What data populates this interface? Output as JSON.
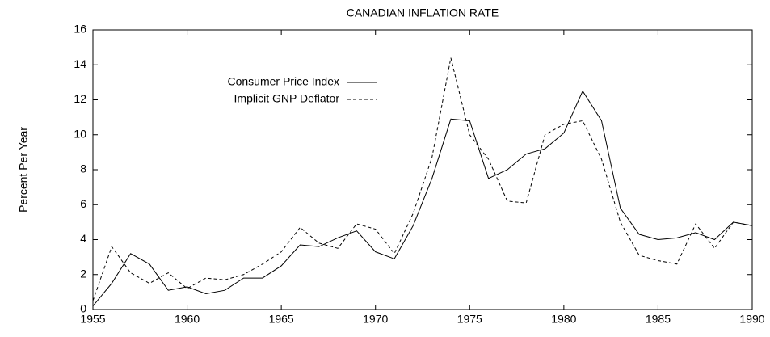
{
  "chart_data": {
    "type": "line",
    "title": "CANADIAN INFLATION RATE",
    "y_label": "Percent Per Year",
    "x": [
      1955,
      1956,
      1957,
      1958,
      1959,
      1960,
      1961,
      1962,
      1963,
      1964,
      1965,
      1966,
      1967,
      1968,
      1969,
      1970,
      1971,
      1972,
      1973,
      1974,
      1975,
      1976,
      1977,
      1978,
      1979,
      1980,
      1981,
      1982,
      1983,
      1984,
      1985,
      1986,
      1987,
      1988,
      1989,
      1990
    ],
    "series": [
      {
        "name": "Consumer Price Index",
        "color": "#000000",
        "line_style": "solid",
        "values": [
          0.2,
          1.5,
          3.2,
          2.6,
          1.1,
          1.3,
          0.9,
          1.1,
          1.8,
          1.8,
          2.5,
          3.7,
          3.6,
          4.1,
          4.5,
          3.3,
          2.9,
          4.8,
          7.5,
          10.9,
          10.8,
          7.5,
          8.0,
          8.9,
          9.2,
          10.1,
          12.5,
          10.8,
          5.8,
          4.3,
          4.0,
          4.1,
          4.4,
          4.0,
          5.0,
          4.8
        ]
      },
      {
        "name": "Implicit GNP Deflator",
        "color": "#000000",
        "line_style": "dashed",
        "values": [
          0.5,
          3.6,
          2.1,
          1.5,
          2.1,
          1.2,
          1.8,
          1.7,
          2.0,
          2.6,
          3.3,
          4.7,
          3.8,
          3.5,
          4.9,
          4.6,
          3.2,
          5.5,
          8.7,
          14.4,
          10.0,
          8.6,
          6.2,
          6.1,
          10.0,
          10.6,
          10.8,
          8.6,
          5.0,
          3.1,
          2.8,
          2.6,
          4.9,
          3.5,
          5.0,
          4.8
        ]
      }
    ],
    "xlim": [
      1955,
      1990
    ],
    "xticks": [
      1955,
      1960,
      1965,
      1970,
      1975,
      1980,
      1985,
      1990
    ],
    "ylim": [
      0,
      16
    ],
    "yticks": [
      0,
      2,
      4,
      6,
      8,
      10,
      12,
      14,
      16
    ],
    "grid": false,
    "legend": "upper left"
  }
}
